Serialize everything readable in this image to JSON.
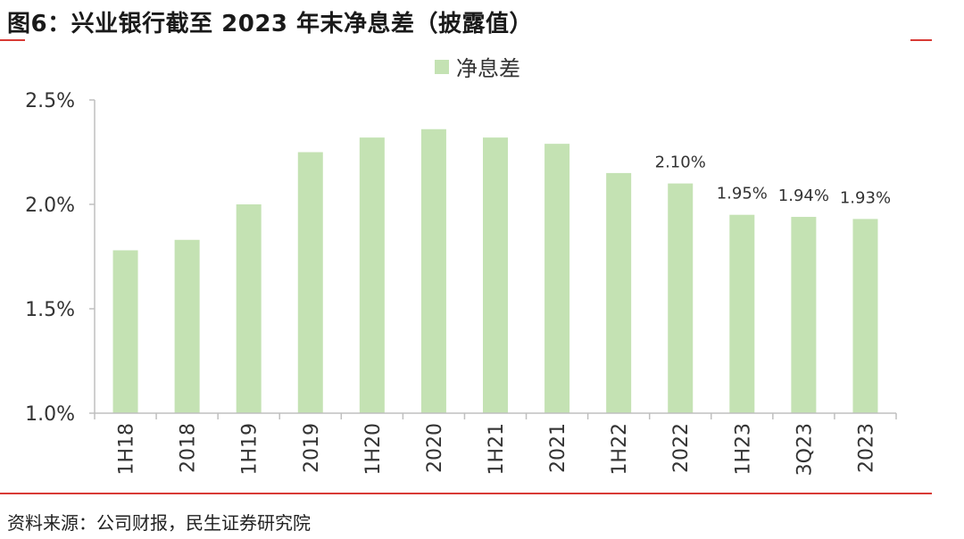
{
  "header": {
    "title": "图6：兴业银行截至 2023 年末净息差（披露值）"
  },
  "footer": {
    "source": "资料来源：公司财报，民生证券研究院"
  },
  "colors": {
    "bar": "#c4e2b3",
    "accent_rule": "#d83a35",
    "axis": "#bfbfbf"
  },
  "chart_data": {
    "type": "bar",
    "title": "图6：兴业银行截至 2023 年末净息差（披露值）",
    "categories": [
      "1H18",
      "2018",
      "1H19",
      "2019",
      "1H20",
      "2020",
      "1H21",
      "2021",
      "1H22",
      "2022",
      "1H23",
      "3Q23",
      "2023"
    ],
    "series": [
      {
        "name": "净息差",
        "values": [
          1.78,
          1.83,
          2.0,
          2.25,
          2.32,
          2.36,
          2.32,
          2.29,
          2.15,
          2.1,
          1.95,
          1.94,
          1.93
        ]
      }
    ],
    "data_labels": {
      "2022": "2.10%",
      "1H23": "1.95%",
      "3Q23": "1.94%",
      "2023": "1.93%"
    },
    "ylim": [
      1.0,
      2.5
    ],
    "yticks": [
      1.0,
      1.5,
      2.0,
      2.5
    ],
    "ytick_labels": [
      "1.0%",
      "1.5%",
      "2.0%",
      "2.5%"
    ],
    "xlabel": "",
    "ylabel": "",
    "legend": "top-center",
    "grid": false
  }
}
